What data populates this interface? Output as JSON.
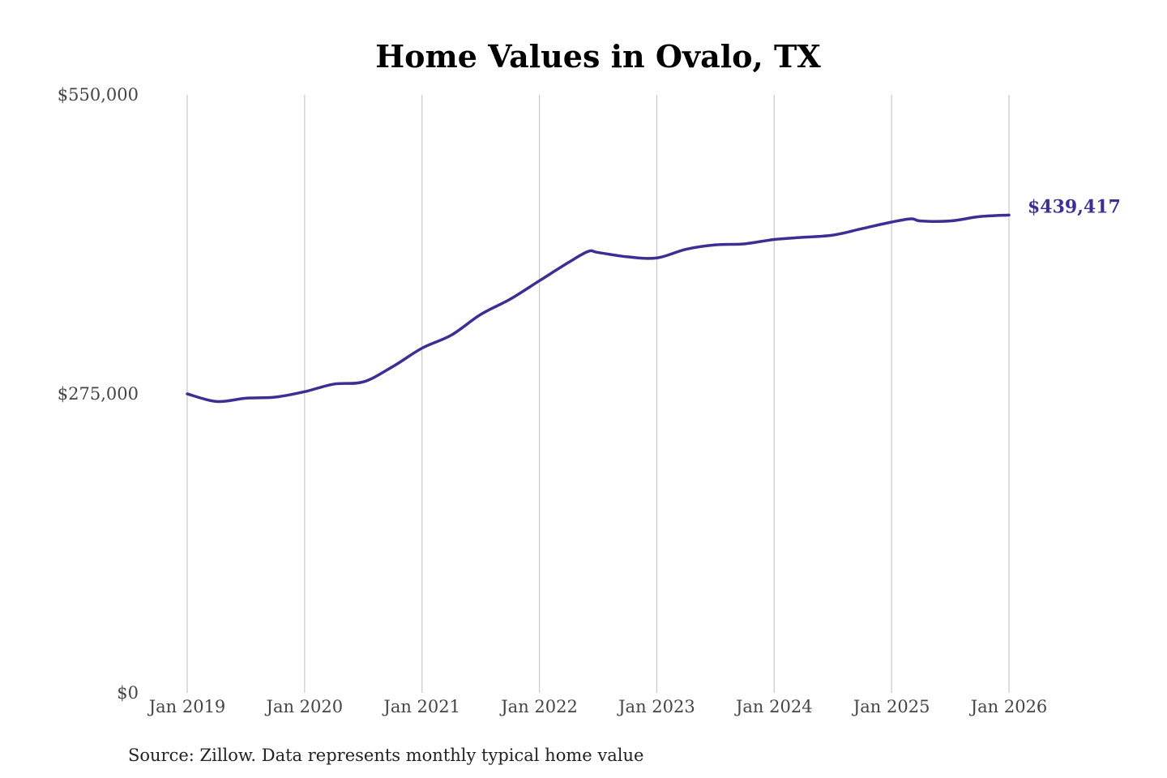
{
  "chart_data": {
    "type": "line",
    "title": "Home Values in Ovalo, TX",
    "source": "Source: Zillow. Data represents monthly typical home value",
    "xlabel": "",
    "ylabel": "",
    "y_ticks": [
      {
        "value": 0,
        "label": "$0"
      },
      {
        "value": 275000,
        "label": "$275,000"
      },
      {
        "value": 550000,
        "label": "$550,000"
      }
    ],
    "x_ticks": [
      {
        "value": "2019-01",
        "label": "Jan 2019"
      },
      {
        "value": "2020-01",
        "label": "Jan 2020"
      },
      {
        "value": "2021-01",
        "label": "Jan 2021"
      },
      {
        "value": "2022-01",
        "label": "Jan 2022"
      },
      {
        "value": "2023-01",
        "label": "Jan 2023"
      },
      {
        "value": "2024-01",
        "label": "Jan 2024"
      },
      {
        "value": "2025-01",
        "label": "Jan 2025"
      },
      {
        "value": "2026-01",
        "label": "Jan 2026"
      }
    ],
    "ylim": [
      0,
      550000
    ],
    "xlim": [
      "2019-01",
      "2026-01"
    ],
    "grid": "vertical",
    "line_color": "#3b2f94",
    "end_label": "$439,417",
    "series": [
      {
        "x": [
          "2019-01",
          "2019-04",
          "2019-07",
          "2019-10",
          "2020-01",
          "2020-04",
          "2020-07",
          "2020-10",
          "2021-01",
          "2021-04",
          "2021-07",
          "2021-10",
          "2022-01",
          "2022-04",
          "2022-06",
          "2022-07",
          "2022-10",
          "2023-01",
          "2023-04",
          "2023-07",
          "2023-10",
          "2024-01",
          "2024-04",
          "2024-07",
          "2024-10",
          "2025-01",
          "2025-03",
          "2025-04",
          "2025-07",
          "2025-10",
          "2026-01"
        ],
        "values": [
          275000,
          268000,
          271000,
          272000,
          277000,
          284000,
          286000,
          300000,
          317000,
          329000,
          348000,
          362000,
          379000,
          396000,
          406000,
          405000,
          401000,
          400000,
          408000,
          412000,
          413000,
          417000,
          419000,
          421000,
          427000,
          433000,
          436000,
          434000,
          434000,
          438000,
          439417
        ]
      }
    ]
  }
}
